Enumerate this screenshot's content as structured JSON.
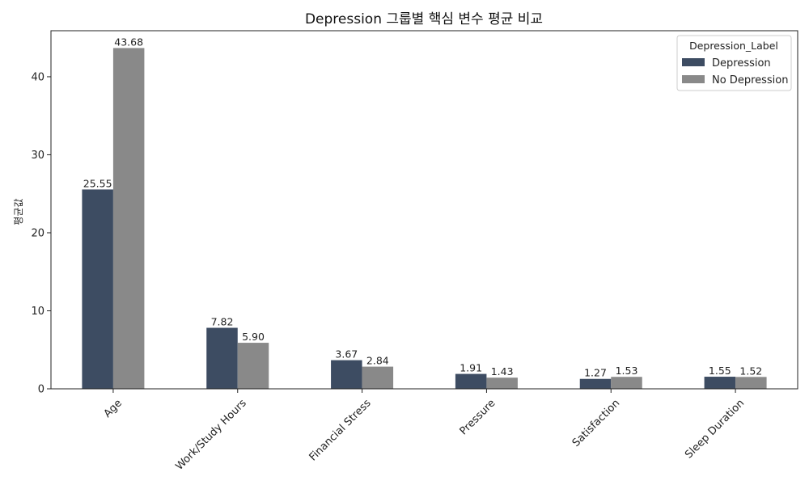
{
  "chart_data": {
    "type": "bar",
    "title": "Depression 그룹별 핵심 변수 평균 비교",
    "xlabel": "",
    "ylabel": "평균값",
    "categories": [
      "Age",
      "Work/Study Hours",
      "Financial Stress",
      "Pressure",
      "Satisfaction",
      "Sleep Duration"
    ],
    "series": [
      {
        "name": "Depression",
        "values": [
          25.55,
          7.82,
          3.67,
          1.91,
          1.27,
          1.55
        ],
        "labels": [
          "25.55",
          "7.82",
          "3.67",
          "1.91",
          "1.27",
          "1.55"
        ],
        "color": "#3d4c62"
      },
      {
        "name": "No Depression",
        "values": [
          43.68,
          5.9,
          2.84,
          1.43,
          1.53,
          1.52
        ],
        "labels": [
          "43.68",
          "5.90",
          "2.84",
          "1.43",
          "1.53",
          "1.52"
        ],
        "color": "#898989"
      }
    ],
    "ylim": [
      0,
      45.9
    ],
    "yticks": [
      0,
      10,
      20,
      30,
      40
    ],
    "ytick_labels": [
      "0",
      "10",
      "20",
      "30",
      "40"
    ],
    "grid": false,
    "legend": {
      "title": "Depression_Label",
      "placement": "top-right"
    }
  }
}
